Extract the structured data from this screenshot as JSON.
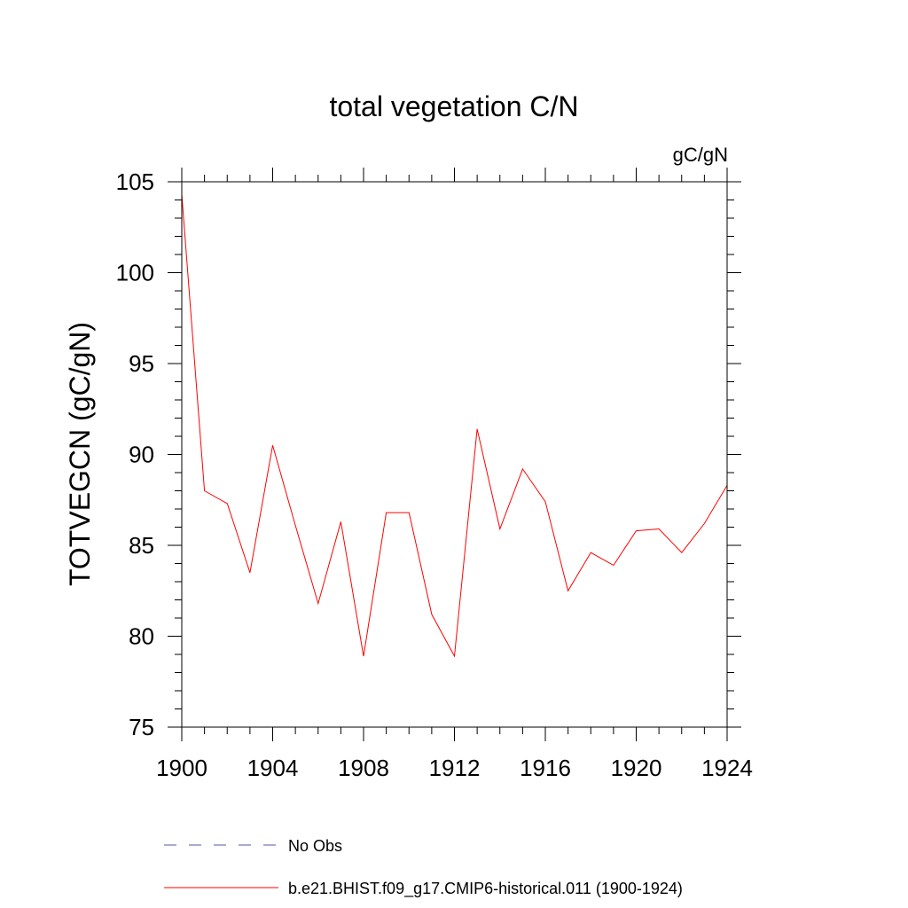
{
  "chart_data": {
    "type": "line",
    "title": "total vegetation C/N",
    "units": "gC/gN",
    "ylabel": "TOTVEGCN  (gC/gN)",
    "xlabel": "",
    "xlim": [
      1900,
      1924
    ],
    "ylim": [
      75,
      105
    ],
    "x_ticks": [
      1900,
      1904,
      1908,
      1912,
      1916,
      1920,
      1924
    ],
    "y_ticks": [
      75,
      80,
      85,
      90,
      95,
      100,
      105
    ],
    "grid": false,
    "legend_position": "bottom",
    "series": [
      {
        "name": "No Obs",
        "color": "#5555aa",
        "style": "dashed",
        "x": [],
        "y": []
      },
      {
        "name": "b.e21.BHIST.f09_g17.CMIP6-historical.011 (1900-1924)",
        "color": "#ff0000",
        "style": "solid",
        "x": [
          1900,
          1901,
          1902,
          1903,
          1904,
          1905,
          1906,
          1907,
          1908,
          1909,
          1910,
          1911,
          1912,
          1913,
          1914,
          1915,
          1916,
          1917,
          1918,
          1919,
          1920,
          1921,
          1922,
          1923,
          1924
        ],
        "y": [
          104.3,
          88.0,
          87.3,
          83.5,
          90.5,
          86.1,
          81.8,
          86.3,
          78.9,
          86.8,
          86.8,
          81.2,
          78.9,
          91.4,
          85.9,
          89.2,
          87.4,
          82.5,
          84.6,
          83.9,
          85.8,
          85.9,
          84.6,
          86.2,
          88.3
        ]
      }
    ]
  }
}
